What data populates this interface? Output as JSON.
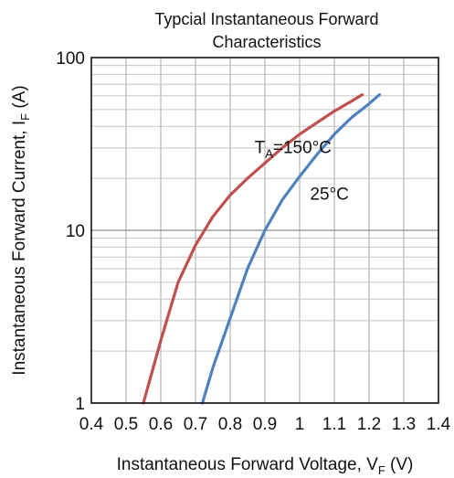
{
  "chart_data": {
    "type": "line",
    "title_line1": "Typcial Instantaneous Forward",
    "title_line2": "Characteristics",
    "xlabel": "Instantaneous Forward Voltage, V",
    "xlabel_sub": "F",
    "xlabel_unit": " (V)",
    "ylabel": "Instantaneous Forward Current, I",
    "ylabel_sub": "F",
    "ylabel_unit": " (A)",
    "x_scale": "linear",
    "y_scale": "log",
    "xlim": [
      0.4,
      1.4
    ],
    "ylim": [
      1,
      100
    ],
    "x_ticks": [
      "0.4",
      "0.5",
      "0.6",
      "0.7",
      "0.8",
      "0.9",
      "1",
      "1.1",
      "1.2",
      "1.3",
      "1.4"
    ],
    "y_ticks": [
      "1",
      "10",
      "100"
    ],
    "grid": true,
    "series": [
      {
        "name": "T=150°C",
        "color": "#c0504d",
        "x": [
          0.55,
          0.6,
          0.65,
          0.7,
          0.75,
          0.8,
          0.85,
          0.9,
          0.95,
          1.0,
          1.05,
          1.1,
          1.15,
          1.18
        ],
        "y": [
          1.0,
          2.3,
          5.0,
          8.2,
          12.0,
          16.0,
          20.0,
          24.5,
          30.0,
          36.0,
          42.0,
          49.0,
          56.0,
          61.0
        ]
      },
      {
        "name": "25°C",
        "color": "#4f81bd",
        "x": [
          0.72,
          0.75,
          0.8,
          0.85,
          0.9,
          0.95,
          1.0,
          1.05,
          1.1,
          1.15,
          1.2,
          1.23
        ],
        "y": [
          1.0,
          1.6,
          3.1,
          6.0,
          10.0,
          15.0,
          20.5,
          27.5,
          36.0,
          45.0,
          54.0,
          61.0
        ]
      }
    ],
    "annotations": [
      {
        "main": "T",
        "sub": "A",
        "rest": "=150°C",
        "x": 0.87,
        "y": 28
      },
      {
        "main": "25°C",
        "sub": "",
        "rest": "",
        "x": 1.03,
        "y": 15
      }
    ]
  }
}
